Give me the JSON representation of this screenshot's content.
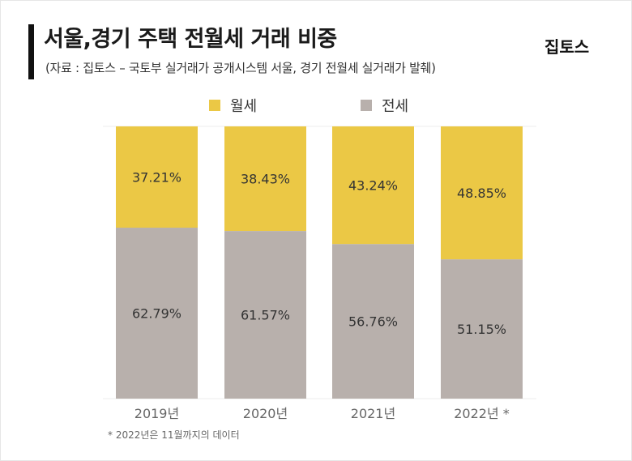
{
  "header": {
    "title": "서울,경기 주택 전월세 거래 비중",
    "subtitle": "(자료 : 집토스 – 국토부 실거래가 공개시스템 서울, 경기 전월세 실거래가 발췌)",
    "logo": "집토스"
  },
  "colors": {
    "monthly": "#EBC845",
    "jeonse": "#B8B0AC",
    "grid": "#eeeeee",
    "label_text": "#333333",
    "tick_text": "#666666"
  },
  "chart_data": {
    "type": "bar",
    "stacked": true,
    "title": "서울,경기 주택 전월세 거래 비중",
    "categories": [
      "2019년",
      "2020년",
      "2021년",
      "2022년 *"
    ],
    "series": [
      {
        "name": "월세",
        "values": [
          37.21,
          38.43,
          43.24,
          48.85
        ],
        "labels": [
          "37.21%",
          "38.43%",
          "43.24%",
          "48.85%"
        ]
      },
      {
        "name": "전세",
        "values": [
          62.79,
          61.57,
          56.76,
          51.15
        ],
        "labels": [
          "62.79%",
          "61.57%",
          "56.76%",
          "51.15%"
        ]
      }
    ],
    "ylim": [
      0,
      100
    ],
    "xlabel": "",
    "ylabel": "",
    "legend": "top-center",
    "grid": false
  },
  "footnote": "* 2022년은 11월까지의 데이터"
}
